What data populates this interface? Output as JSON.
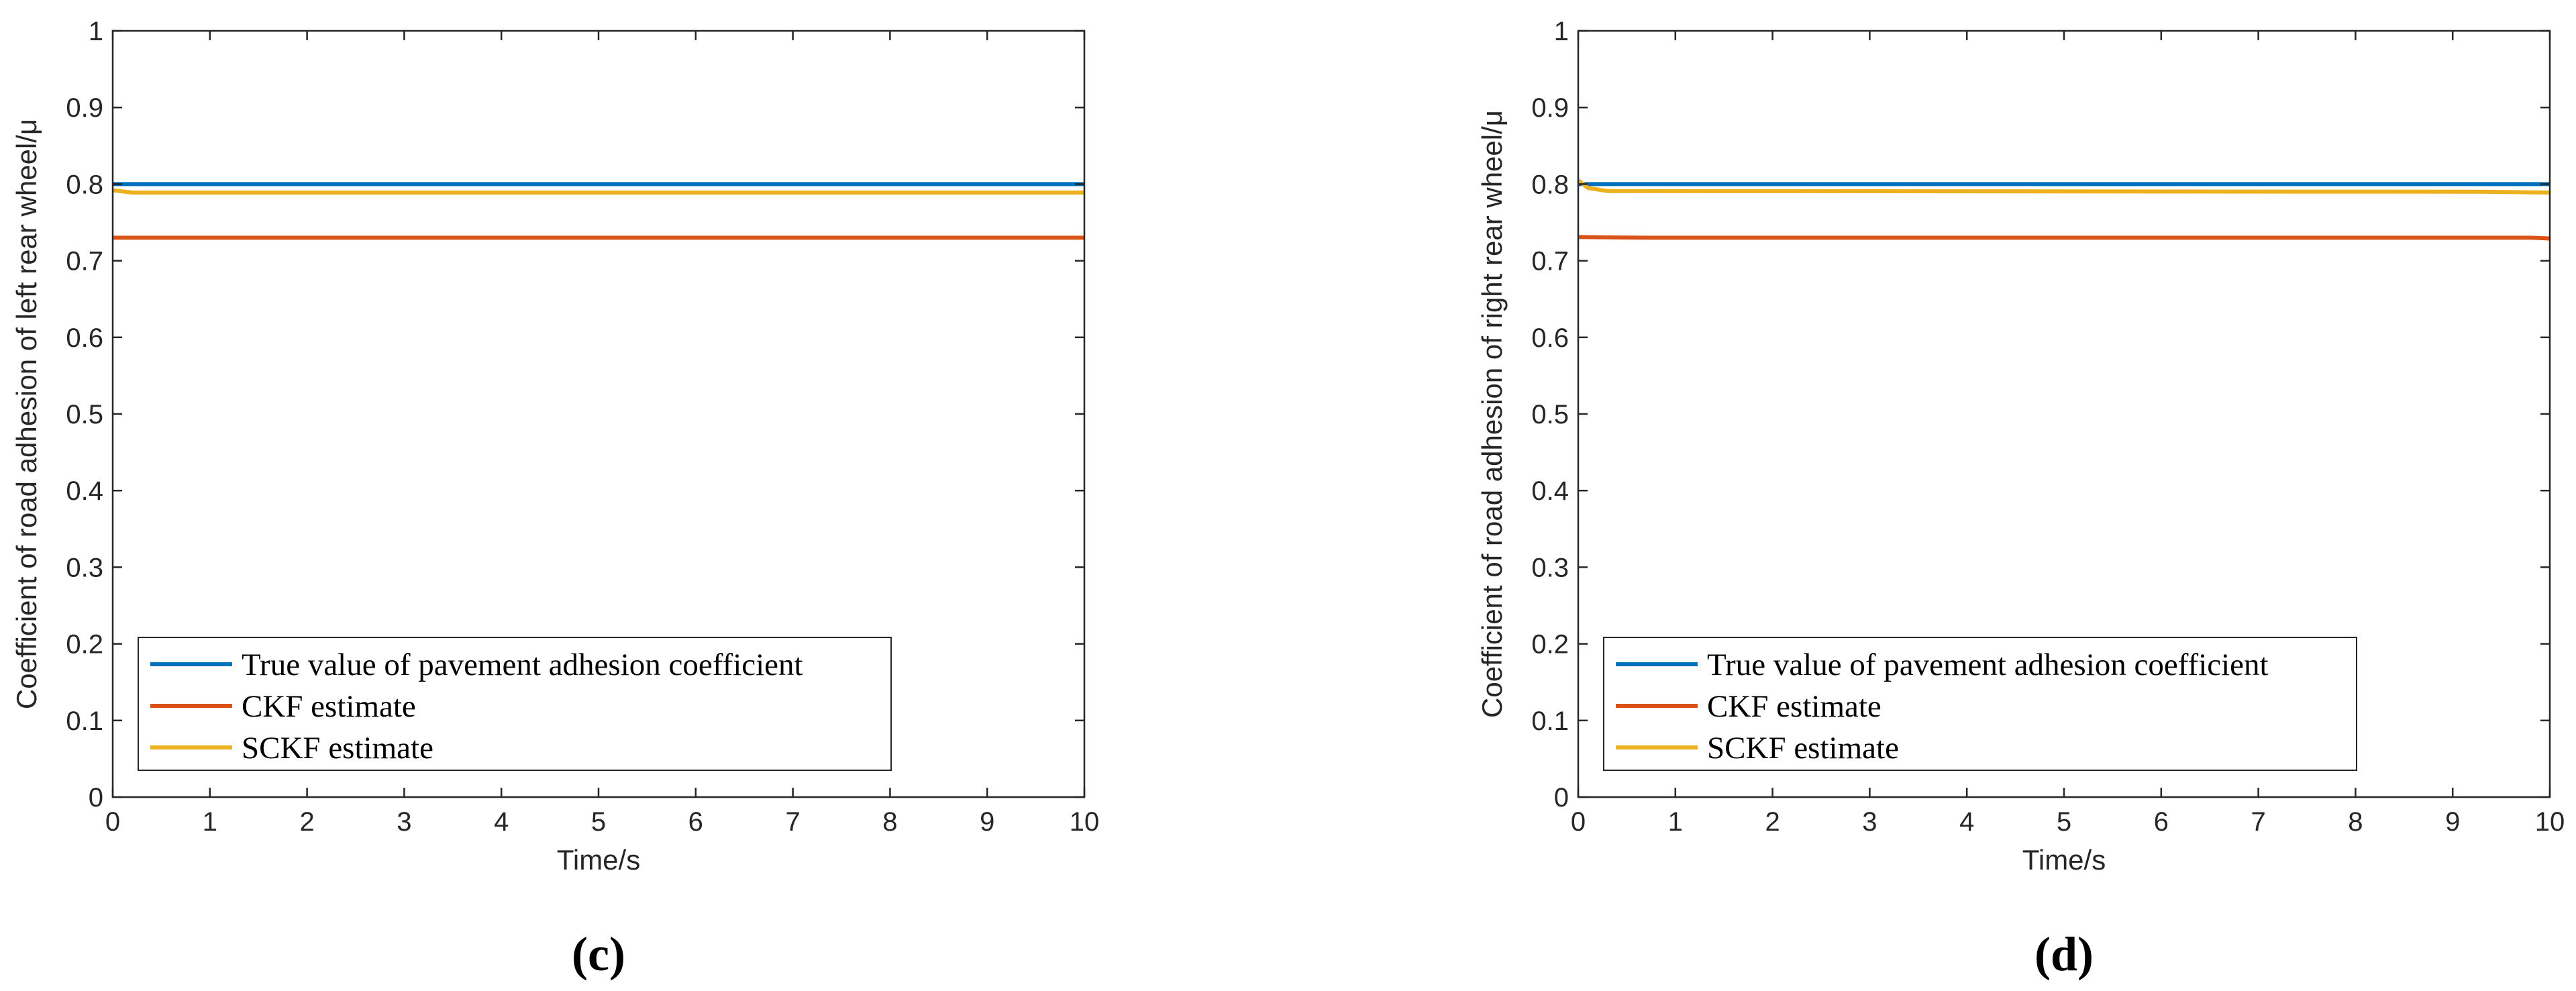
{
  "chart_data": [
    {
      "type": "line",
      "panel_label": "(c)",
      "xlabel": "Time/s",
      "ylabel": "Coefficient of road adhesion of left rear wheel/μ",
      "xlim": [
        0,
        10
      ],
      "ylim": [
        0,
        1
      ],
      "xticks": [
        0,
        1,
        2,
        3,
        4,
        5,
        6,
        7,
        8,
        9,
        10
      ],
      "yticks": [
        0,
        0.1,
        0.2,
        0.3,
        0.4,
        0.5,
        0.6,
        0.7,
        0.8,
        0.9,
        1
      ],
      "ytick_labels": [
        "0",
        "0.1",
        "0.2",
        "0.3",
        "0.4",
        "0.5",
        "0.6",
        "0.7",
        "0.8",
        "0.9",
        "1"
      ],
      "legend_position": "bottom-left",
      "series": [
        {
          "name": "True value of pavement adhesion coefficient",
          "color": "#0072BD",
          "x": [
            0,
            10
          ],
          "y": [
            0.8,
            0.8
          ]
        },
        {
          "name": "CKF estimate",
          "color": "#D95319",
          "x": [
            0,
            10
          ],
          "y": [
            0.73,
            0.73
          ]
        },
        {
          "name": "SCKF estimate",
          "color": "#EDB120",
          "x": [
            0,
            0.2,
            10
          ],
          "y": [
            0.792,
            0.789,
            0.789
          ]
        }
      ]
    },
    {
      "type": "line",
      "panel_label": "(d)",
      "xlabel": "Time/s",
      "ylabel": "Coefficient of road adhesion of right rear wheel/μ",
      "xlim": [
        0,
        10
      ],
      "ylim": [
        0,
        1
      ],
      "xticks": [
        0,
        1,
        2,
        3,
        4,
        5,
        6,
        7,
        8,
        9,
        10
      ],
      "yticks": [
        0,
        0.1,
        0.2,
        0.3,
        0.4,
        0.5,
        0.6,
        0.7,
        0.8,
        0.9,
        1
      ],
      "ytick_labels": [
        "0",
        "0.1",
        "0.2",
        "0.3",
        "0.4",
        "0.5",
        "0.6",
        "0.7",
        "0.8",
        "0.9",
        "1"
      ],
      "legend_position": "bottom-left",
      "series": [
        {
          "name": "True value of pavement adhesion coefficient",
          "color": "#0072BD",
          "x": [
            0,
            10
          ],
          "y": [
            0.8,
            0.8
          ]
        },
        {
          "name": "CKF estimate",
          "color": "#D95319",
          "x": [
            0,
            0.7,
            9.8,
            10
          ],
          "y": [
            0.731,
            0.73,
            0.73,
            0.729
          ]
        },
        {
          "name": "SCKF estimate",
          "color": "#EDB120",
          "x": [
            0,
            0.1,
            0.3,
            9.3,
            10
          ],
          "y": [
            0.805,
            0.795,
            0.791,
            0.79,
            0.789
          ]
        }
      ]
    }
  ]
}
